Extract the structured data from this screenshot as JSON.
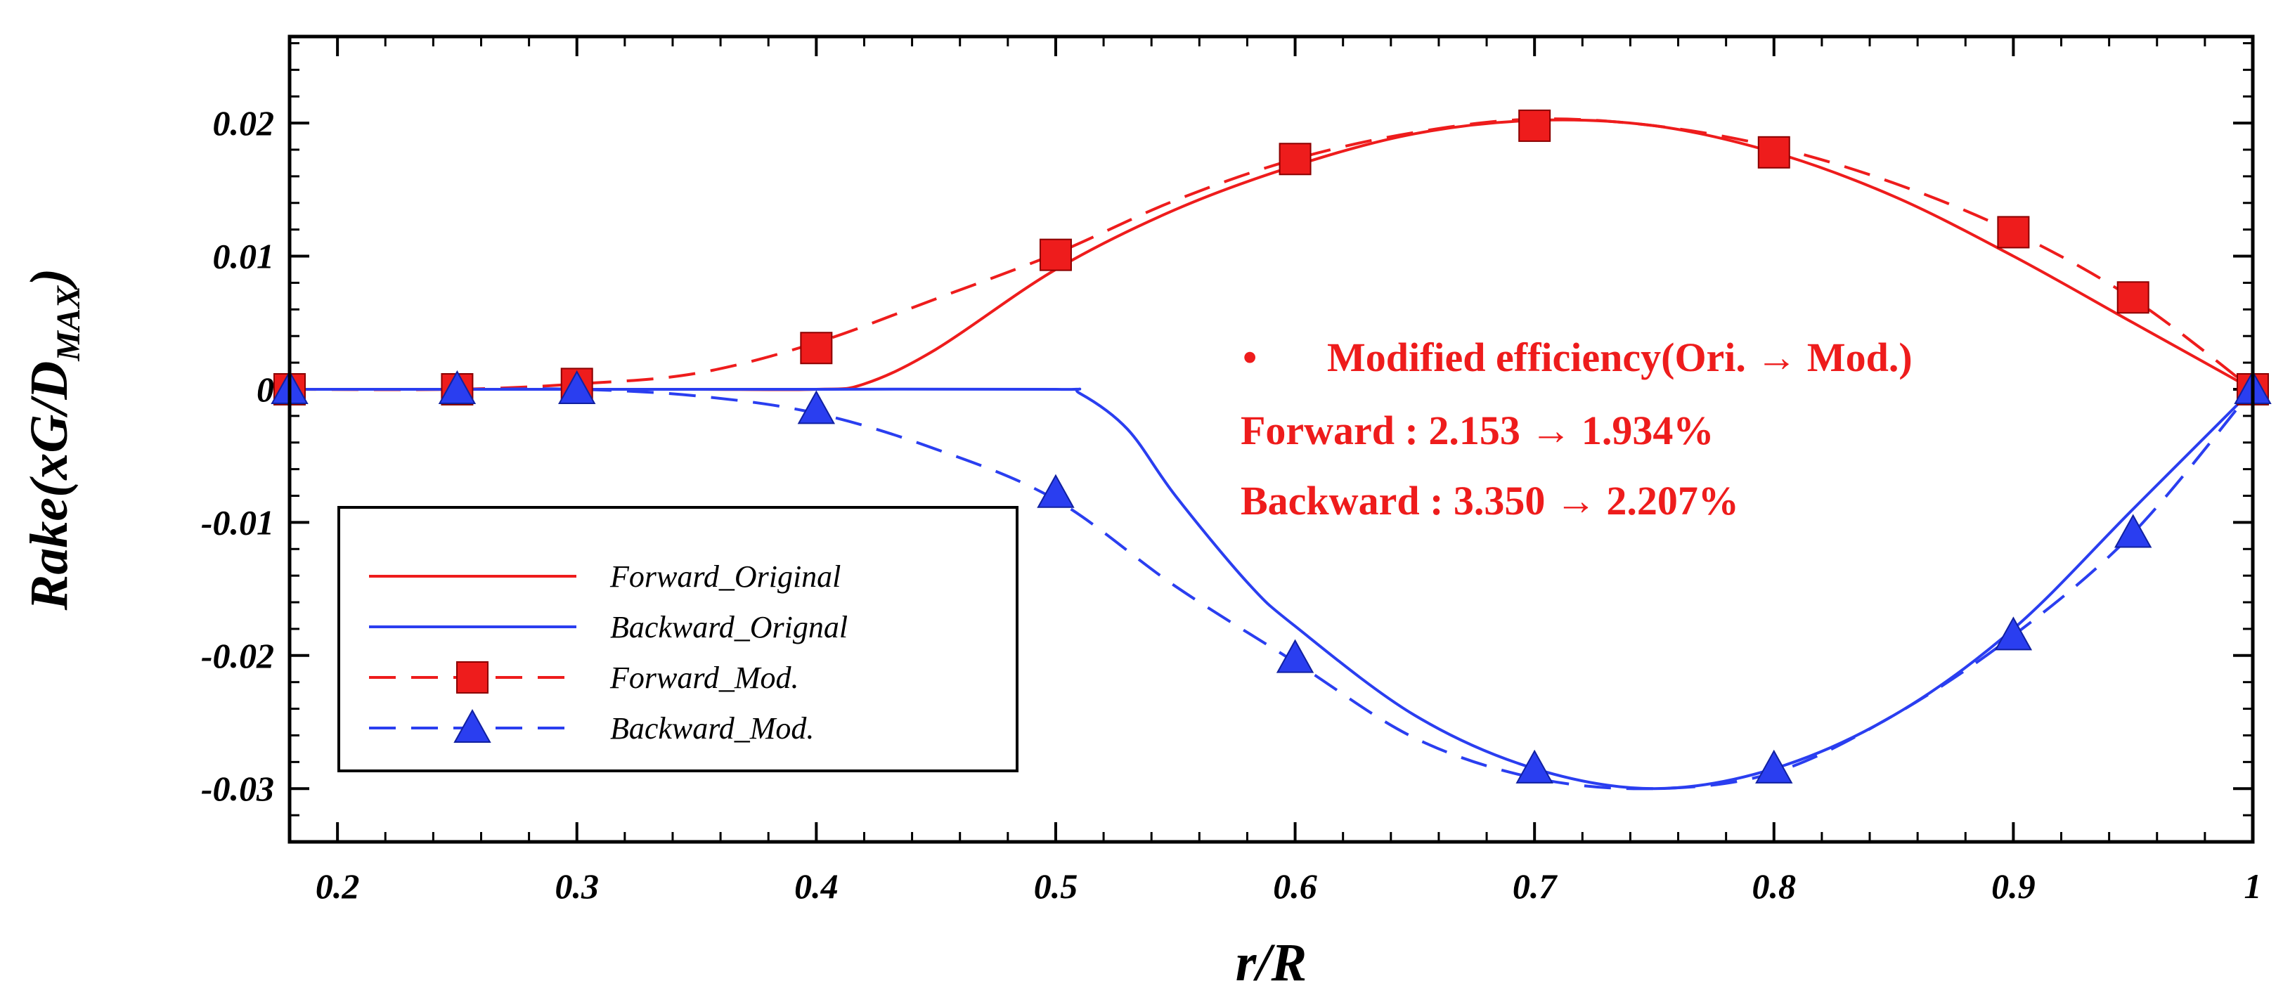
{
  "chart_data": {
    "type": "line",
    "title": "",
    "xlabel": "r/R",
    "ylabel": "Rake(xG/D",
    "ylabel_subscript": "MAX",
    "ylabel_close": ")",
    "xlim": [
      0.18,
      1.0
    ],
    "ylim": [
      -0.034,
      0.0265
    ],
    "x_ticks": [
      0.2,
      0.3,
      0.4,
      0.5,
      0.6,
      0.7,
      0.8,
      0.9,
      1.0
    ],
    "x_tick_labels": [
      "0.2",
      "0.3",
      "0.4",
      "0.5",
      "0.6",
      "0.7",
      "0.8",
      "0.9",
      "1"
    ],
    "y_ticks": [
      0.02,
      0.01,
      0.0,
      -0.01,
      -0.02,
      -0.03
    ],
    "y_tick_labels": [
      "0.02",
      "0.01",
      "0",
      "-0.01",
      "-0.02",
      "-0.03"
    ],
    "grid": false,
    "series": [
      {
        "name": "Forward_Original",
        "color": "#ee1c1c",
        "line": "solid",
        "marker": "none",
        "x": [
          0.18,
          0.25,
          0.3,
          0.35,
          0.4,
          0.42,
          0.45,
          0.5,
          0.55,
          0.6,
          0.65,
          0.7,
          0.75,
          0.8,
          0.85,
          0.9,
          0.95,
          1.0
        ],
        "y": [
          0.0,
          0.0,
          0.0,
          0.0,
          0.0,
          0.0004,
          0.003,
          0.009,
          0.0135,
          0.0168,
          0.0192,
          0.0202,
          0.0198,
          0.0178,
          0.0145,
          0.01,
          0.005,
          0.0
        ]
      },
      {
        "name": "Backward_Orignal",
        "color": "#2a3ef0",
        "line": "solid",
        "marker": "none",
        "x": [
          0.18,
          0.25,
          0.3,
          0.4,
          0.5,
          0.51,
          0.53,
          0.55,
          0.58,
          0.6,
          0.65,
          0.7,
          0.75,
          0.8,
          0.85,
          0.9,
          0.95,
          1.0
        ],
        "y": [
          0.0,
          0.0,
          0.0,
          0.0,
          0.0,
          -0.0003,
          -0.003,
          -0.008,
          -0.0145,
          -0.0178,
          -0.0245,
          -0.0285,
          -0.03,
          -0.0285,
          -0.0245,
          -0.018,
          -0.009,
          0.0
        ]
      },
      {
        "name": "Forward_Mod.",
        "color": "#ee1c1c",
        "line": "dashed",
        "marker": "square",
        "x": [
          0.18,
          0.25,
          0.3,
          0.35,
          0.4,
          0.45,
          0.5,
          0.55,
          0.6,
          0.65,
          0.7,
          0.75,
          0.8,
          0.85,
          0.9,
          0.95,
          1.0
        ],
        "y": [
          0.0,
          0.0,
          0.0004,
          0.0012,
          0.0035,
          0.0068,
          0.0102,
          0.0142,
          0.0173,
          0.0193,
          0.0203,
          0.0198,
          0.0182,
          0.0155,
          0.0118,
          0.0068,
          0.0
        ],
        "marker_x": [
          0.18,
          0.25,
          0.3,
          0.4,
          0.5,
          0.6,
          0.7,
          0.8,
          0.9,
          0.95,
          1.0
        ],
        "marker_y": [
          0.0,
          0.0,
          0.0004,
          0.0031,
          0.0101,
          0.0173,
          0.0198,
          0.0178,
          0.0118,
          0.0069,
          0.0
        ]
      },
      {
        "name": "Backward_Mod.",
        "color": "#2a3ef0",
        "line": "dashed",
        "marker": "triangle",
        "x": [
          0.18,
          0.25,
          0.3,
          0.35,
          0.4,
          0.45,
          0.5,
          0.55,
          0.6,
          0.65,
          0.7,
          0.75,
          0.8,
          0.85,
          0.9,
          0.95,
          1.0
        ],
        "y": [
          0.0,
          0.0,
          0.0,
          -0.0005,
          -0.0018,
          -0.0045,
          -0.0083,
          -0.0148,
          -0.0205,
          -0.0262,
          -0.0292,
          -0.03,
          -0.0288,
          -0.0245,
          -0.0185,
          -0.0108,
          0.0
        ],
        "marker_x": [
          0.18,
          0.25,
          0.3,
          0.4,
          0.5,
          0.6,
          0.7,
          0.8,
          0.9,
          0.95,
          1.0
        ],
        "marker_y": [
          0.0,
          0.0,
          0.0,
          -0.0015,
          -0.0078,
          -0.0202,
          -0.0285,
          -0.0285,
          -0.0185,
          -0.0108,
          0.0
        ]
      }
    ],
    "legend": {
      "position": "bottom-left",
      "entries": [
        "Forward_Original",
        "Backward_Orignal",
        "Forward_Mod.",
        "Backward_Mod."
      ]
    },
    "annotations": {
      "color": "#ee1c1c",
      "bullet": "•",
      "line1": "Modified efficiency(Ori. → Mod.)",
      "line2": "Forward : 2.153 → 1.934%",
      "line3": "Backward : 3.350 → 2.207%"
    }
  }
}
